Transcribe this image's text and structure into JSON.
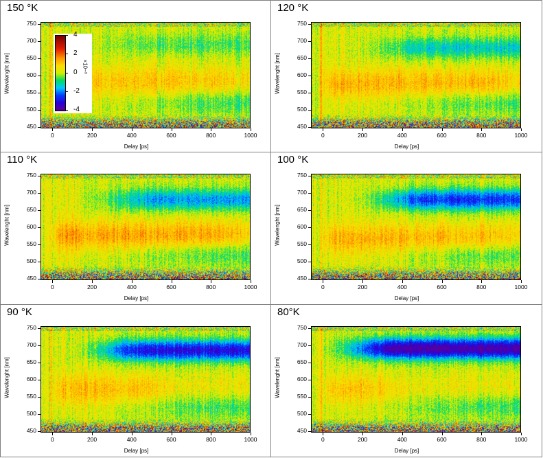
{
  "panels": [
    {
      "title": "150 °K"
    },
    {
      "title": "120 °K"
    },
    {
      "title": "110 °K"
    },
    {
      "title": "100 °K"
    },
    {
      "title": "90 °K"
    },
    {
      "title": "80°K"
    }
  ],
  "axis": {
    "xlabel": "Delay [ps]",
    "ylabel": "Wavelenght [nm]",
    "x_ticks": [
      "0",
      "200",
      "400",
      "600",
      "800",
      "1000"
    ],
    "y_ticks": [
      "750",
      "700",
      "650",
      "600",
      "550",
      "500",
      "450"
    ]
  },
  "colorbar": {
    "ticks": [
      "4",
      "2",
      "0",
      "-2",
      "-4"
    ],
    "label": "×10−³"
  },
  "chart_data": [
    {
      "type": "heatmap",
      "title": "150 °K",
      "xlabel": "Delay [ps]",
      "ylabel": "Wavelenght [nm]",
      "xlim": [
        -60,
        1000
      ],
      "ylim": [
        445,
        755
      ],
      "zlim": [
        -4,
        4
      ],
      "z_scale": "x10^-3",
      "features": [
        {
          "wavelength_nm": 580,
          "delay_range_ps": [
            0,
            1000
          ],
          "value": 0.8
        },
        {
          "wavelength_nm": 690,
          "delay_range_ps": [
            300,
            1000
          ],
          "value": -0.8
        }
      ]
    },
    {
      "type": "heatmap",
      "title": "120 °K",
      "xlabel": "Delay [ps]",
      "ylabel": "Wavelenght [nm]",
      "xlim": [
        -60,
        1000
      ],
      "ylim": [
        445,
        755
      ],
      "zlim": [
        -4,
        4
      ],
      "z_scale": "x10^-3",
      "features": [
        {
          "wavelength_nm": 575,
          "delay_range_ps": [
            0,
            1000
          ],
          "value": 1.0
        },
        {
          "wavelength_nm": 680,
          "delay_range_ps": [
            300,
            1000
          ],
          "value": -1.5
        }
      ]
    },
    {
      "type": "heatmap",
      "title": "110 °K",
      "xlabel": "Delay [ps]",
      "ylabel": "Wavelenght [nm]",
      "xlim": [
        -60,
        1000
      ],
      "ylim": [
        445,
        755
      ],
      "zlim": [
        -4,
        4
      ],
      "z_scale": "x10^-3",
      "features": [
        {
          "wavelength_nm": 575,
          "delay_range_ps": [
            0,
            1000
          ],
          "value": 1.2
        },
        {
          "wavelength_nm": 680,
          "delay_range_ps": [
            300,
            1000
          ],
          "value": -2.0
        }
      ]
    },
    {
      "type": "heatmap",
      "title": "100 °K",
      "xlabel": "Delay [ps]",
      "ylabel": "Wavelenght [nm]",
      "xlim": [
        -60,
        1000
      ],
      "ylim": [
        445,
        755
      ],
      "zlim": [
        -4,
        4
      ],
      "z_scale": "x10^-3",
      "features": [
        {
          "wavelength_nm": 565,
          "delay_range_ps": [
            0,
            1000
          ],
          "value": 1.0
        },
        {
          "wavelength_nm": 680,
          "delay_range_ps": [
            300,
            1000
          ],
          "value": -2.8
        }
      ]
    },
    {
      "type": "heatmap",
      "title": "90 °K",
      "xlabel": "Delay [ps]",
      "ylabel": "Wavelenght [nm]",
      "xlim": [
        -60,
        1000
      ],
      "ylim": [
        445,
        755
      ],
      "zlim": [
        -4,
        4
      ],
      "z_scale": "x10^-3",
      "features": [
        {
          "wavelength_nm": 570,
          "delay_range_ps": [
            0,
            600
          ],
          "value": 0.9
        },
        {
          "wavelength_nm": 685,
          "delay_range_ps": [
            250,
            1000
          ],
          "value": -3.3
        }
      ]
    },
    {
      "type": "heatmap",
      "title": "80°K",
      "xlabel": "Delay [ps]",
      "ylabel": "Wavelenght [nm]",
      "xlim": [
        -60,
        1000
      ],
      "ylim": [
        445,
        755
      ],
      "zlim": [
        -4,
        4
      ],
      "z_scale": "x10^-3",
      "features": [
        {
          "wavelength_nm": 570,
          "delay_range_ps": [
            0,
            400
          ],
          "value": 0.8
        },
        {
          "wavelength_nm": 690,
          "delay_range_ps": [
            150,
            1000
          ],
          "value": -4.0
        }
      ]
    }
  ]
}
